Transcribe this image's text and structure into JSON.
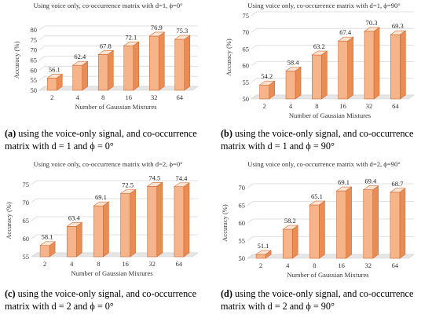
{
  "charts": [
    {
      "caption_letter": "(a)",
      "caption_text": " using the voice-only signal, and co-occurrence matrix with d = 1 and ϕ = 0°",
      "chart_data": {
        "type": "bar",
        "title": "Using voice only, co-occurrence matrix with d=1, ϕ=0°",
        "xlabel": "Number of Gaussian Mixtures",
        "ylabel": "Accuracy (%)",
        "categories": [
          "2",
          "4",
          "8",
          "16",
          "32",
          "64"
        ],
        "values": [
          56.1,
          62.4,
          67.8,
          72.1,
          76.9,
          75.3
        ],
        "ylim": [
          50,
          80
        ],
        "yticks": [
          50,
          55,
          60,
          65,
          70,
          75,
          80
        ],
        "grid": true
      }
    },
    {
      "caption_letter": "(b)",
      "caption_text": " using the voice-only signal, and co-occurrence matrix with d = 1 and ϕ = 90°",
      "chart_data": {
        "type": "bar",
        "title": "Using voice only, co-occurrence matrix with d=1, ϕ=90°",
        "xlabel": "Number of Gaussian Mixtures",
        "ylabel": "Accuracy (%)",
        "categories": [
          "2",
          "4",
          "8",
          "16",
          "32",
          "64"
        ],
        "values": [
          54.2,
          58.4,
          63.2,
          67.4,
          70.3,
          69.3
        ],
        "ylim": [
          50,
          75
        ],
        "yticks": [
          50,
          55,
          60,
          65,
          70,
          75
        ],
        "grid": true
      }
    },
    {
      "caption_letter": "(c)",
      "caption_text": " using the voice-only signal, and co-occurrence matrix with d = 2 and ϕ = 0°",
      "chart_data": {
        "type": "bar",
        "title": "Using voice only, co-occurrence matrix with d=2, ϕ=0°",
        "xlabel": "Number of Gaussian Mixtures",
        "ylabel": "Accuracy (%)",
        "categories": [
          "2",
          "4",
          "8",
          "16",
          "32",
          "64"
        ],
        "values": [
          58.1,
          63.4,
          69.1,
          72.5,
          74.5,
          74.4
        ],
        "ylim": [
          55,
          75
        ],
        "yticks": [
          55,
          60,
          65,
          70,
          75
        ],
        "grid": true
      }
    },
    {
      "caption_letter": "(d)",
      "caption_text": " using the voice-only signal, and co-occurrence matrix with d = 2 and ϕ = 90°",
      "chart_data": {
        "type": "bar",
        "title": "Using voice only, co-occurrence matrix with d=2, ϕ=90°",
        "xlabel": "Number of Gaussian Mixtures",
        "ylabel": "Accuracy (%)",
        "categories": [
          "2",
          "4",
          "8",
          "16",
          "32",
          "64"
        ],
        "values": [
          51.1,
          58.2,
          65.1,
          69.1,
          69.4,
          68.7
        ],
        "ylim": [
          50,
          70
        ],
        "yticks": [
          50,
          55,
          60,
          65,
          70
        ],
        "grid": true
      }
    }
  ],
  "colors": {
    "bar_front": "#f6b48a",
    "bar_side": "#e98d55",
    "bar_top": "#fde3d2",
    "bar_edge": "#d2692e",
    "grid": "#d9d9d9",
    "floor": "#e6e6e6"
  }
}
